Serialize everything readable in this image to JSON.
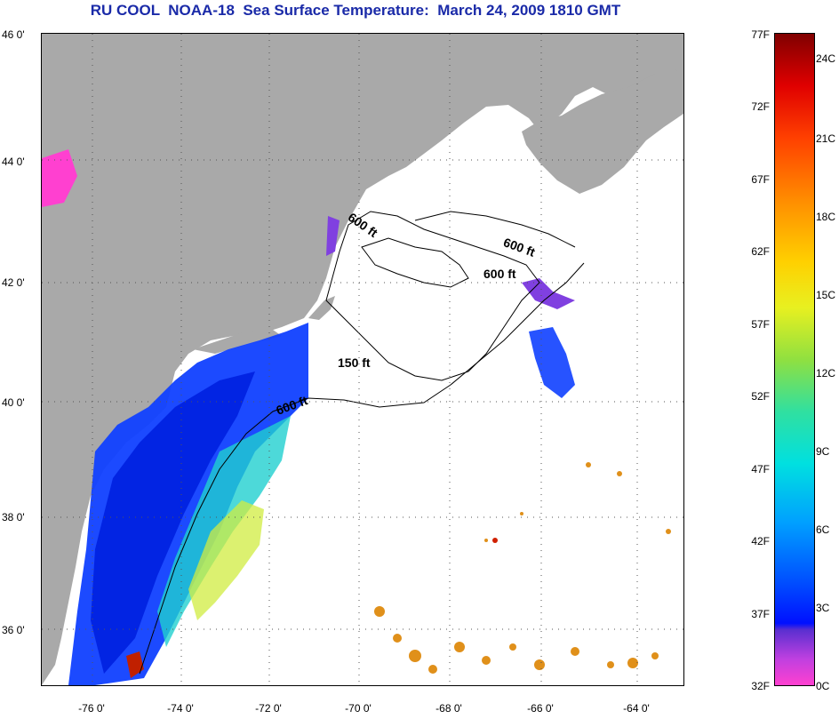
{
  "title": "RU COOL  NOAA-18  Sea Surface Temperature:  March 24, 2009 1810 GMT",
  "latitude_labels": [
    "46 0'",
    "44 0'",
    "42 0'",
    "40 0'",
    "38 0'",
    "36 0'"
  ],
  "longitude_labels": [
    "-76 0'",
    "-74 0'",
    "-72 0'",
    "-70 0'",
    "-68 0'",
    "-66 0'",
    "-64 0'"
  ],
  "depth_contour_labels": [
    "600 ft",
    "600 ft",
    "600 ft",
    "150 ft",
    "600 ft"
  ],
  "colorbar": {
    "fahrenheit_labels": [
      "77F",
      "72F",
      "67F",
      "62F",
      "57F",
      "52F",
      "47F",
      "42F",
      "37F",
      "32F"
    ],
    "celsius_labels": [
      "24C",
      "21C",
      "18C",
      "15C",
      "12C",
      "9C",
      "6C",
      "3C",
      "0C"
    ]
  },
  "colors": {
    "title": "#1a2aa8",
    "land": "#a9a9a9",
    "water_no_data": "#ffffff",
    "cold_water": "#0030ff",
    "warm_water": "#e08a20"
  }
}
